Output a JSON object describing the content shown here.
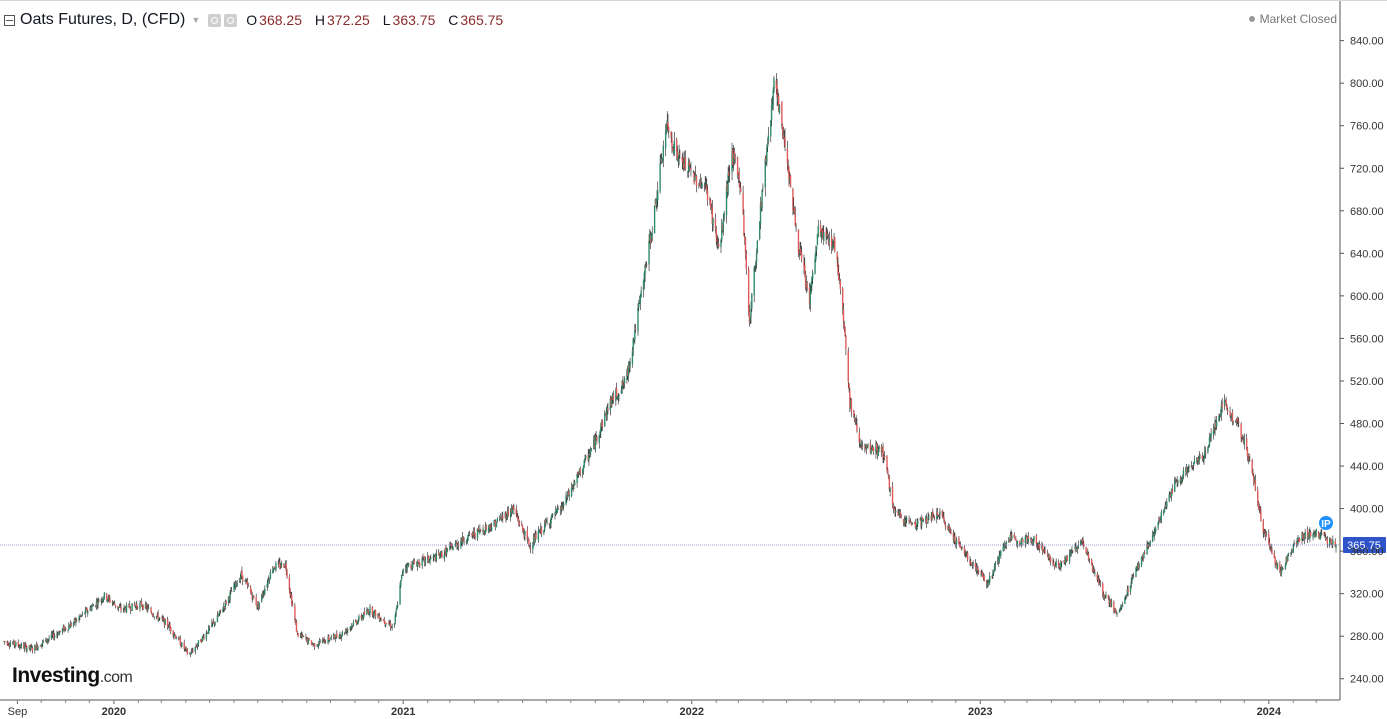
{
  "header": {
    "title": "Oats Futures, D, (CFD)",
    "open_label": "O",
    "open_value": "368.25",
    "high_label": "H",
    "high_value": "372.25",
    "low_label": "L",
    "low_value": "363.75",
    "close_label": "C",
    "close_value": "365.75",
    "status": "Market Closed"
  },
  "logo": {
    "name": "Investing",
    "suffix": ".com"
  },
  "colors": {
    "up": "#2e8b6a",
    "down": "#e05a5a",
    "wick": "#1c1c1c",
    "price_line": "#7b7bd6",
    "price_badge": "#2f54c9",
    "ip_badge": "#1e90ff"
  },
  "chart_data": {
    "type": "candlestick",
    "title": "Oats Futures, D, (CFD)",
    "ylim": [
      220,
      850
    ],
    "y_ticks": [
      "240.00",
      "280.00",
      "320.00",
      "360.00",
      "400.00",
      "440.00",
      "480.00",
      "520.00",
      "560.00",
      "600.00",
      "640.00",
      "680.00",
      "720.00",
      "760.00",
      "800.00",
      "840.00"
    ],
    "x_ticks": [
      {
        "label": "Sep",
        "date": "2019-09-01",
        "major": false
      },
      {
        "label": "2020",
        "date": "2020-01-01",
        "major": true
      },
      {
        "label": "2021",
        "date": "2021-01-01",
        "major": true
      },
      {
        "label": "2022",
        "date": "2022-01-01",
        "major": true
      },
      {
        "label": "2023",
        "date": "2023-01-01",
        "major": true
      },
      {
        "label": "2024",
        "date": "2024-01-01",
        "major": true
      }
    ],
    "xlim": [
      "2019-08-15",
      "2024-03-26"
    ],
    "last_price": "365.75",
    "last_price_value": 365.75,
    "badge": "IP",
    "series": [
      {
        "name": "close",
        "points": [
          [
            "2019-08-15",
            275
          ],
          [
            "2019-09-20",
            268
          ],
          [
            "2019-11-10",
            292
          ],
          [
            "2019-12-20",
            318
          ],
          [
            "2020-01-10",
            305
          ],
          [
            "2020-02-05",
            310
          ],
          [
            "2020-03-10",
            290
          ],
          [
            "2020-04-05",
            262
          ],
          [
            "2020-05-10",
            296
          ],
          [
            "2020-06-10",
            338
          ],
          [
            "2020-07-01",
            308
          ],
          [
            "2020-07-20",
            345
          ],
          [
            "2020-08-05",
            348
          ],
          [
            "2020-08-20",
            282
          ],
          [
            "2020-09-10",
            272
          ],
          [
            "2020-10-15",
            282
          ],
          [
            "2020-11-20",
            305
          ],
          [
            "2020-12-20",
            288
          ],
          [
            "2021-01-01",
            345
          ],
          [
            "2021-02-15",
            355
          ],
          [
            "2021-03-20",
            372
          ],
          [
            "2021-04-25",
            385
          ],
          [
            "2021-05-20",
            400
          ],
          [
            "2021-06-10",
            365
          ],
          [
            "2021-06-30",
            385
          ],
          [
            "2021-07-20",
            400
          ],
          [
            "2021-08-10",
            430
          ],
          [
            "2021-08-30",
            460
          ],
          [
            "2021-09-20",
            500
          ],
          [
            "2021-10-10",
            520
          ],
          [
            "2021-10-30",
            605
          ],
          [
            "2021-11-15",
            680
          ],
          [
            "2021-11-30",
            760
          ],
          [
            "2021-12-15",
            730
          ],
          [
            "2022-01-01",
            715
          ],
          [
            "2022-01-20",
            700
          ],
          [
            "2022-02-05",
            640
          ],
          [
            "2022-02-20",
            735
          ],
          [
            "2022-03-05",
            700
          ],
          [
            "2022-03-15",
            575
          ],
          [
            "2022-03-30",
            690
          ],
          [
            "2022-04-15",
            800
          ],
          [
            "2022-04-30",
            740
          ],
          [
            "2022-05-15",
            650
          ],
          [
            "2022-05-30",
            595
          ],
          [
            "2022-06-10",
            660
          ],
          [
            "2022-06-30",
            650
          ],
          [
            "2022-07-10",
            600
          ],
          [
            "2022-07-20",
            500
          ],
          [
            "2022-08-05",
            455
          ],
          [
            "2022-08-30",
            455
          ],
          [
            "2022-09-15",
            395
          ],
          [
            "2022-10-10",
            385
          ],
          [
            "2022-11-10",
            395
          ],
          [
            "2022-12-10",
            360
          ],
          [
            "2023-01-10",
            330
          ],
          [
            "2023-02-05",
            372
          ],
          [
            "2023-03-10",
            370
          ],
          [
            "2023-04-10",
            345
          ],
          [
            "2023-05-10",
            370
          ],
          [
            "2023-06-05",
            320
          ],
          [
            "2023-06-25",
            300
          ],
          [
            "2023-07-15",
            340
          ],
          [
            "2023-08-10",
            378
          ],
          [
            "2023-09-05",
            425
          ],
          [
            "2023-10-10",
            450
          ],
          [
            "2023-11-05",
            500
          ],
          [
            "2023-11-25",
            475
          ],
          [
            "2023-12-10",
            440
          ],
          [
            "2023-12-25",
            380
          ],
          [
            "2024-01-15",
            340
          ],
          [
            "2024-02-05",
            370
          ],
          [
            "2024-02-25",
            378
          ],
          [
            "2024-03-15",
            370
          ],
          [
            "2024-03-26",
            365.75
          ]
        ]
      }
    ]
  }
}
